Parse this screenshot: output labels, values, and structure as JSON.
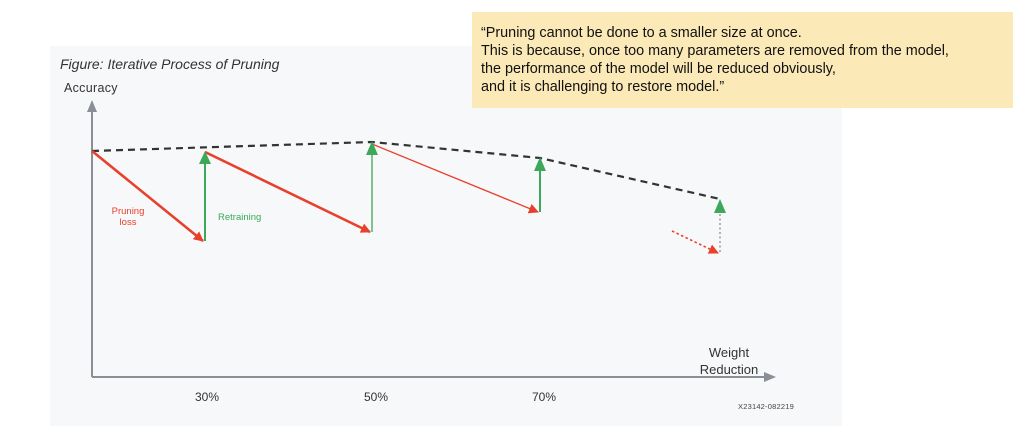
{
  "figure": {
    "title": "Figure: Iterative Process of Pruning",
    "y_axis_label": "Accuracy",
    "x_axis_label_line1": "Weight",
    "x_axis_label_line2": "Reduction",
    "ticks": [
      "30%",
      "50%",
      "70%"
    ],
    "code": "X23142-082219",
    "pruning_label_line1": "Pruning",
    "pruning_label_line2": "loss",
    "retraining_label": "Retraining"
  },
  "quote": {
    "lines": [
      "“Pruning cannot be done to a smaller size at once.",
      "This is because, once too many parameters are removed from the model,",
      "the performance of the model will be reduced obviously,",
      "and it is challenging to restore model.”"
    ]
  },
  "colors": {
    "pruning": "#e8402c",
    "retraining": "#3da85a",
    "trend": "#333333",
    "axis": "#8a8f96",
    "quote_bg": "#fbe9b8"
  }
}
